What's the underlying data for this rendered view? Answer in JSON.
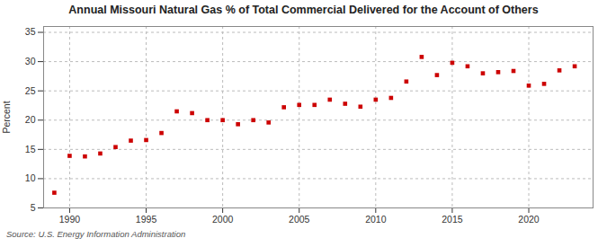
{
  "chart_data": {
    "type": "scatter",
    "title": "Annual Missouri Natural Gas % of Total Commercial Delivered for the Account of Others",
    "ylabel": "Percent",
    "source": "Source: U.S. Energy Information Administration",
    "x": [
      1989,
      1990,
      1991,
      1992,
      1993,
      1994,
      1995,
      1996,
      1997,
      1998,
      1999,
      2000,
      2001,
      2002,
      2003,
      2004,
      2005,
      2006,
      2007,
      2008,
      2009,
      2010,
      2011,
      2012,
      2013,
      2014,
      2015,
      2016,
      2017,
      2018,
      2019,
      2020,
      2021,
      2022,
      2023
    ],
    "values": [
      7.6,
      13.9,
      13.8,
      14.3,
      15.4,
      16.5,
      16.6,
      17.8,
      21.5,
      21.2,
      20.0,
      20.0,
      19.3,
      20.0,
      19.6,
      22.2,
      22.6,
      22.6,
      23.5,
      22.8,
      22.3,
      23.5,
      23.8,
      26.6,
      30.8,
      27.7,
      29.8,
      29.2,
      28.0,
      28.2,
      28.4,
      25.9,
      26.2,
      28.5,
      29.2
    ],
    "color": "#cc0000",
    "marker": "square",
    "xlim": [
      1988.3,
      2024.2
    ],
    "ylim": [
      5,
      36
    ],
    "xticks": [
      1990,
      1995,
      2000,
      2005,
      2010,
      2015,
      2020
    ],
    "yticks": [
      5,
      10,
      15,
      20,
      25,
      30,
      35
    ],
    "grid": true
  }
}
